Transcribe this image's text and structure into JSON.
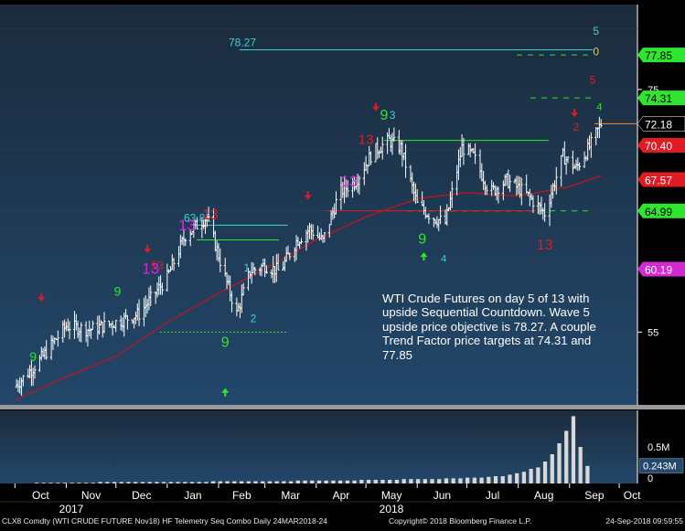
{
  "chart_data": {
    "type": "line",
    "title": "",
    "instrument": "WTI CRUDE FUTURE Nov18",
    "y_ticks": [
      "75",
      "55"
    ],
    "x_months": [
      "Oct",
      "Nov",
      "Dec",
      "Jan",
      "Feb",
      "Mar",
      "Apr",
      "May",
      "Jun",
      "Jul",
      "Aug",
      "Sep",
      "Oct"
    ],
    "x_years": [
      "2017",
      "2018"
    ],
    "ylim": [
      49,
      82
    ],
    "series": [
      {
        "name": "close",
        "color": "#ffffff",
        "x": [
          "2017-10-01",
          "2017-10-15",
          "2017-11-01",
          "2017-11-15",
          "2017-12-01",
          "2017-12-15",
          "2018-01-01",
          "2018-01-12",
          "2018-01-25",
          "2018-02-05",
          "2018-02-12",
          "2018-02-20",
          "2018-03-01",
          "2018-03-10",
          "2018-03-20",
          "2018-03-28",
          "2018-04-05",
          "2018-04-15",
          "2018-04-25",
          "2018-05-05",
          "2018-05-15",
          "2018-05-22",
          "2018-06-01",
          "2018-06-10",
          "2018-06-18",
          "2018-06-28",
          "2018-07-05",
          "2018-07-15",
          "2018-07-25",
          "2018-08-05",
          "2018-08-17",
          "2018-08-28",
          "2018-09-05",
          "2018-09-14",
          "2018-09-20"
        ],
        "values": [
          50.5,
          52.5,
          55.5,
          55.2,
          55.8,
          56.5,
          59.5,
          63.0,
          64.5,
          59.5,
          56.5,
          60.0,
          60.5,
          60.0,
          62.5,
          63.5,
          62.5,
          66.5,
          67.5,
          69.8,
          70.8,
          70.2,
          65.5,
          64.5,
          64.0,
          70.2,
          69.5,
          66.5,
          67.5,
          66.5,
          64.8,
          69.5,
          68.5,
          70.5,
          72.18
        ]
      },
      {
        "name": "moving-average",
        "color": "#c0141e",
        "x": [
          "2017-10-01",
          "2017-11-01",
          "2017-12-01",
          "2018-01-01",
          "2018-02-01",
          "2018-03-01",
          "2018-04-01",
          "2018-05-01",
          "2018-06-01",
          "2018-07-01",
          "2018-08-01",
          "2018-09-01",
          "2018-09-20"
        ],
        "values": [
          49.4,
          51.3,
          53.0,
          55.8,
          58.2,
          60.2,
          62.6,
          64.5,
          66.0,
          66.5,
          66.2,
          67.0,
          67.9
        ]
      }
    ],
    "levels": [
      {
        "value": 78.27,
        "label": "78.27",
        "color": "#40d0d8"
      },
      {
        "value": 63.81,
        "label": "63.81",
        "color": "#40d0d8"
      }
    ],
    "volume": {
      "y_ticks": [
        "0.5M",
        "0"
      ],
      "last_label": "0.243M",
      "values": [
        0.01,
        0.01,
        0.01,
        0.01,
        0.01,
        0.01,
        0.01,
        0.01,
        0.01,
        0.02,
        0.02,
        0.02,
        0.02,
        0.02,
        0.02,
        0.02,
        0.02,
        0.02,
        0.02,
        0.02,
        0.02,
        0.02,
        0.02,
        0.02,
        0.02,
        0.03,
        0.03,
        0.03,
        0.03,
        0.03,
        0.03,
        0.03,
        0.03,
        0.03,
        0.03,
        0.03,
        0.03,
        0.04,
        0.04,
        0.04,
        0.04,
        0.04,
        0.04,
        0.04,
        0.04,
        0.04,
        0.05,
        0.05,
        0.05,
        0.05,
        0.05,
        0.05,
        0.06,
        0.06,
        0.06,
        0.06,
        0.06,
        0.06,
        0.07,
        0.07,
        0.07,
        0.08,
        0.08,
        0.08,
        0.09,
        0.1,
        0.1,
        0.12,
        0.14,
        0.16,
        0.2,
        0.22,
        0.3,
        0.4,
        0.55,
        0.72,
        0.92,
        0.5,
        0.24
      ]
    },
    "price_tags": [
      {
        "label": "77.85",
        "value": 77.85,
        "bg": "#2ee62e",
        "fg": "#000000"
      },
      {
        "label": "74.31",
        "value": 74.31,
        "bg": "#2ee62e",
        "fg": "#000000"
      },
      {
        "label": "72.18",
        "value": 72.18,
        "bg": "#000000",
        "fg": "#ffffff"
      },
      {
        "label": "70.40",
        "value": 70.4,
        "bg": "#e01b24",
        "fg": "#ffffff"
      },
      {
        "label": "67.57",
        "value": 67.57,
        "bg": "#e01b24",
        "fg": "#ffffff"
      },
      {
        "label": "64.99",
        "value": 64.99,
        "bg": "#2ee62e",
        "fg": "#000000"
      },
      {
        "label": "60.19",
        "value": 60.19,
        "bg": "#d42ad4",
        "fg": "#ffffff"
      }
    ],
    "annotation": "WTI Crude Futures on day 5 of 13 with upside Sequential Countdown. Wave 5 upside price objective is 78.27.  A couple Trend Factor price targets at 74.31 and 77.85",
    "grid": true,
    "legend": "none"
  },
  "footer": {
    "left": "CLX8 Comdty (WTI CRUDE FUTURE  Nov18) HF Telemetry Seq Combo  Daily 24MAR2018-24",
    "center": "Copyright© 2018 Bloomberg Finance L.P.",
    "right": "24-Sep-2018 09:59:55"
  },
  "colors": {
    "background": "#000000",
    "panel_top": "#1b2b3c",
    "panel_bottom": "#22476a",
    "axis_text": "#ffffff"
  }
}
